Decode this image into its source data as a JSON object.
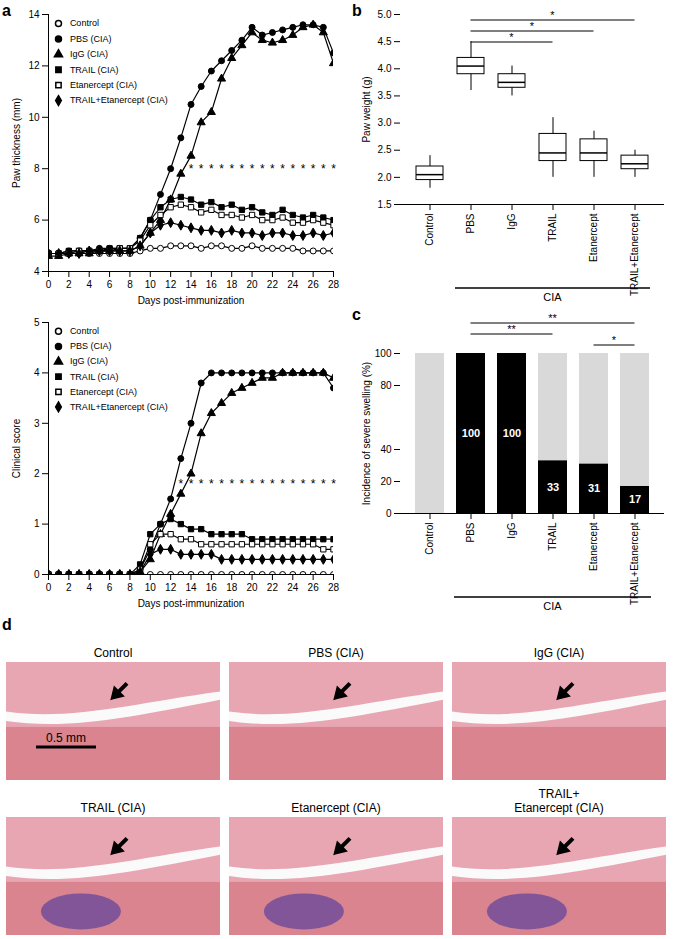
{
  "chart_data": [
    {
      "type": "line",
      "panel": "a",
      "x_label": "Days post-immunization",
      "y_label": "Paw thickness (mm)",
      "x": [
        0,
        1,
        2,
        3,
        4,
        5,
        6,
        7,
        8,
        9,
        10,
        11,
        12,
        13,
        14,
        15,
        16,
        17,
        18,
        19,
        20,
        21,
        22,
        23,
        24,
        25,
        26,
        27,
        28
      ],
      "xlim": [
        0,
        28
      ],
      "xticks": [
        0,
        2,
        4,
        6,
        8,
        10,
        12,
        14,
        16,
        18,
        20,
        22,
        24,
        26,
        28
      ],
      "ylim": [
        4,
        14
      ],
      "yticks": [
        4,
        6,
        8,
        10,
        12,
        14
      ],
      "legend": "top-left",
      "series": [
        {
          "name": "Control",
          "color": "#000000",
          "marker": "circle-open",
          "values": [
            4.7,
            4.7,
            4.7,
            4.7,
            4.7,
            4.7,
            4.7,
            4.7,
            4.7,
            4.8,
            4.9,
            4.9,
            5.0,
            5.0,
            5.0,
            4.9,
            5.0,
            5.0,
            4.9,
            4.9,
            5.0,
            4.9,
            4.9,
            4.9,
            4.9,
            4.8,
            4.8,
            4.8,
            4.8
          ]
        },
        {
          "name": "PBS (CIA)",
          "color": "#000000",
          "marker": "circle",
          "values": [
            4.7,
            4.7,
            4.8,
            4.8,
            4.8,
            4.9,
            4.9,
            4.9,
            4.9,
            5.3,
            6.0,
            7.0,
            8.0,
            9.2,
            10.5,
            11.2,
            11.8,
            12.2,
            12.6,
            13.0,
            13.5,
            13.2,
            13.3,
            13.4,
            13.5,
            13.6,
            13.6,
            13.5,
            12.5
          ]
        },
        {
          "name": "IgG (CIA)",
          "color": "#000000",
          "marker": "triangle",
          "values": [
            4.6,
            4.6,
            4.7,
            4.7,
            4.7,
            4.8,
            4.8,
            4.8,
            4.8,
            5.0,
            5.5,
            6.0,
            6.8,
            7.8,
            8.5,
            9.8,
            10.2,
            11.5,
            12.3,
            12.8,
            13.3,
            13.0,
            12.9,
            13.0,
            13.2,
            13.5,
            13.6,
            13.3,
            12.1
          ]
        },
        {
          "name": "TRAIL (CIA)",
          "color": "#000000",
          "marker": "square",
          "values": [
            4.7,
            4.7,
            4.8,
            4.8,
            4.8,
            4.8,
            4.9,
            4.9,
            4.9,
            5.3,
            6.0,
            6.5,
            6.8,
            6.9,
            6.8,
            6.6,
            6.7,
            6.5,
            6.6,
            6.4,
            6.5,
            6.3,
            6.2,
            6.4,
            6.2,
            6.1,
            6.2,
            6.1,
            6.0
          ]
        },
        {
          "name": "Etanercept (CIA)",
          "color": "#000000",
          "marker": "square-open",
          "values": [
            4.7,
            4.7,
            4.7,
            4.8,
            4.8,
            4.8,
            4.8,
            4.9,
            4.9,
            5.2,
            5.8,
            6.2,
            6.5,
            6.6,
            6.5,
            6.3,
            6.4,
            6.2,
            6.2,
            6.1,
            6.2,
            6.0,
            6.0,
            6.1,
            5.9,
            5.9,
            6.0,
            5.9,
            5.8
          ]
        },
        {
          "name": "TRAIL+Etanercept (CIA)",
          "color": "#000000",
          "marker": "diamond",
          "values": [
            4.7,
            4.7,
            4.7,
            4.7,
            4.8,
            4.8,
            4.8,
            4.8,
            4.8,
            5.0,
            5.5,
            5.8,
            5.9,
            5.8,
            5.7,
            5.6,
            5.6,
            5.5,
            5.6,
            5.5,
            5.5,
            5.4,
            5.5,
            5.5,
            5.4,
            5.4,
            5.5,
            5.4,
            5.5
          ]
        }
      ],
      "annotations": [
        {
          "x": 14,
          "y": 8.0,
          "text": "*"
        },
        {
          "x": 15,
          "y": 8.0,
          "text": "*"
        },
        {
          "x": 16,
          "y": 8.0,
          "text": "*"
        },
        {
          "x": 17,
          "y": 8.0,
          "text": "*"
        },
        {
          "x": 18,
          "y": 8.0,
          "text": "*"
        },
        {
          "x": 19,
          "y": 8.0,
          "text": "*"
        },
        {
          "x": 20,
          "y": 8.0,
          "text": "*"
        },
        {
          "x": 21,
          "y": 8.0,
          "text": "*"
        },
        {
          "x": 22,
          "y": 8.0,
          "text": "*"
        },
        {
          "x": 23,
          "y": 8.0,
          "text": "*"
        },
        {
          "x": 24,
          "y": 8.0,
          "text": "*"
        },
        {
          "x": 25,
          "y": 8.0,
          "text": "*"
        },
        {
          "x": 26,
          "y": 8.0,
          "text": "*"
        },
        {
          "x": 27,
          "y": 8.0,
          "text": "*"
        },
        {
          "x": 28,
          "y": 8.0,
          "text": "*"
        }
      ]
    },
    {
      "type": "line",
      "x_label": "Days post-immunization",
      "y_label": "Clinical score",
      "x": [
        0,
        1,
        2,
        3,
        4,
        5,
        6,
        7,
        8,
        9,
        10,
        11,
        12,
        13,
        14,
        15,
        16,
        17,
        18,
        19,
        20,
        21,
        22,
        23,
        24,
        25,
        26,
        27,
        28
      ],
      "xlim": [
        0,
        28
      ],
      "xticks": [
        0,
        2,
        4,
        6,
        8,
        10,
        12,
        14,
        16,
        18,
        20,
        22,
        24,
        26,
        28
      ],
      "ylim": [
        0,
        5
      ],
      "yticks": [
        0,
        1,
        2,
        3,
        4,
        5
      ],
      "legend": "top-left",
      "series": [
        {
          "name": "Control",
          "color": "#000000",
          "marker": "circle-open",
          "values": [
            0,
            0,
            0,
            0,
            0,
            0,
            0,
            0,
            0,
            0,
            0,
            0,
            0,
            0,
            0,
            0,
            0,
            0,
            0,
            0,
            0,
            0,
            0,
            0,
            0,
            0,
            0,
            0,
            0
          ]
        },
        {
          "name": "PBS (CIA)",
          "color": "#000000",
          "marker": "circle",
          "values": [
            0,
            0,
            0,
            0,
            0,
            0,
            0,
            0,
            0,
            0.1,
            0.5,
            1.0,
            1.5,
            2.3,
            3.0,
            3.8,
            4,
            4,
            4,
            4,
            4,
            4,
            4,
            4,
            4,
            4,
            4,
            4,
            3.7
          ]
        },
        {
          "name": "IgG (CIA)",
          "color": "#000000",
          "marker": "triangle",
          "values": [
            0,
            0,
            0,
            0,
            0,
            0,
            0,
            0,
            0,
            0.05,
            0.3,
            0.8,
            1.2,
            1.6,
            2.0,
            2.8,
            3.2,
            3.4,
            3.6,
            3.7,
            3.8,
            3.9,
            3.9,
            4,
            4,
            4,
            4,
            4,
            3.9
          ]
        },
        {
          "name": "TRAIL (CIA)",
          "color": "#000000",
          "marker": "square",
          "values": [
            0,
            0,
            0,
            0,
            0,
            0,
            0,
            0,
            0,
            0.2,
            0.8,
            1.0,
            1.1,
            1.0,
            0.9,
            0.9,
            0.8,
            0.8,
            0.8,
            0.8,
            0.7,
            0.7,
            0.7,
            0.7,
            0.7,
            0.7,
            0.7,
            0.7,
            0.7
          ]
        },
        {
          "name": "Etanercept (CIA)",
          "color": "#000000",
          "marker": "square-open",
          "values": [
            0,
            0,
            0,
            0,
            0,
            0,
            0,
            0,
            0,
            0.1,
            0.6,
            0.8,
            0.8,
            0.7,
            0.7,
            0.6,
            0.6,
            0.6,
            0.6,
            0.6,
            0.6,
            0.6,
            0.6,
            0.6,
            0.6,
            0.6,
            0.6,
            0.5,
            0.5
          ]
        },
        {
          "name": "TRAIL+Etanercept (CIA)",
          "color": "#000000",
          "marker": "diamond",
          "values": [
            0,
            0,
            0,
            0,
            0,
            0,
            0,
            0,
            0,
            0.05,
            0.4,
            0.5,
            0.5,
            0.4,
            0.4,
            0.4,
            0.4,
            0.3,
            0.3,
            0.3,
            0.3,
            0.3,
            0.3,
            0.3,
            0.3,
            0.3,
            0.3,
            0.3,
            0.3
          ]
        }
      ],
      "annotations": [
        {
          "x": 13,
          "y": 1.8,
          "text": "*"
        },
        {
          "x": 14,
          "y": 1.8,
          "text": "*"
        },
        {
          "x": 15,
          "y": 1.8,
          "text": "*"
        },
        {
          "x": 16,
          "y": 1.8,
          "text": "*"
        },
        {
          "x": 17,
          "y": 1.8,
          "text": "*"
        },
        {
          "x": 18,
          "y": 1.8,
          "text": "*"
        },
        {
          "x": 19,
          "y": 1.8,
          "text": "*"
        },
        {
          "x": 20,
          "y": 1.8,
          "text": "*"
        },
        {
          "x": 21,
          "y": 1.8,
          "text": "*"
        },
        {
          "x": 22,
          "y": 1.8,
          "text": "*"
        },
        {
          "x": 23,
          "y": 1.8,
          "text": "*"
        },
        {
          "x": 24,
          "y": 1.8,
          "text": "*"
        },
        {
          "x": 25,
          "y": 1.8,
          "text": "*"
        },
        {
          "x": 26,
          "y": 1.8,
          "text": "*"
        },
        {
          "x": 27,
          "y": 1.8,
          "text": "*"
        },
        {
          "x": 28,
          "y": 1.8,
          "text": "*"
        }
      ]
    },
    {
      "type": "box",
      "panel": "b",
      "y_label": "Paw weight (g)",
      "categories": [
        "Control",
        "PBS",
        "IgG",
        "TRAIL",
        "Etanercept",
        "TRAIL+Etanercept"
      ],
      "boxes": [
        {
          "min": 1.8,
          "q1": 1.95,
          "median": 2.05,
          "q3": 2.2,
          "max": 2.4
        },
        {
          "min": 3.6,
          "q1": 3.9,
          "median": 4.05,
          "q3": 4.2,
          "max": 4.5
        },
        {
          "min": 3.5,
          "q1": 3.65,
          "median": 3.75,
          "q3": 3.9,
          "max": 4.05
        },
        {
          "min": 2.0,
          "q1": 2.3,
          "median": 2.45,
          "q3": 2.8,
          "max": 3.1
        },
        {
          "min": 2.0,
          "q1": 2.3,
          "median": 2.45,
          "q3": 2.7,
          "max": 2.85
        },
        {
          "min": 2.0,
          "q1": 2.15,
          "median": 2.25,
          "q3": 2.4,
          "max": 2.5
        }
      ],
      "color": "#000000",
      "ylim": [
        1.5,
        5.0
      ],
      "yticks": [
        1.5,
        {
          "value": 2,
          "label": "2.0"
        },
        2.5,
        {
          "value": 3,
          "label": "3.0"
        },
        3.5,
        {
          "value": 4,
          "label": "4.0"
        },
        4.5,
        {
          "value": 5,
          "label": "5.0"
        }
      ],
      "group": {
        "label": "CIA",
        "categories": [
          "PBS",
          "IgG",
          "TRAIL",
          "Etanercept",
          "TRAIL+Etanercept"
        ]
      },
      "comparisons": [
        {
          "from": "PBS",
          "to": "TRAIL+Etanercept",
          "text": "*"
        },
        {
          "from": "PBS",
          "to": "Etanercept",
          "text": "*"
        },
        {
          "from": "PBS",
          "to": "TRAIL",
          "text": "*"
        }
      ]
    },
    {
      "type": "bar",
      "panel": "c",
      "y_label": "Incidence of severe swelling (%)",
      "stacked": true,
      "categories": [
        "Control",
        "PBS",
        "IgG",
        "TRAIL",
        "Etanercept",
        "TRAIL+Etanercept"
      ],
      "series": [
        {
          "color": "#000000",
          "values": [
            0,
            100,
            100,
            33,
            31,
            17
          ],
          "value_labels": [
            null,
            "100",
            "100",
            "33",
            "31",
            "17"
          ]
        },
        {
          "color": "#d9d9d9",
          "values": [
            100,
            0,
            0,
            67,
            69,
            83
          ]
        }
      ],
      "data_labels": true,
      "ylim": [
        0,
        100
      ],
      "yticks": [
        0,
        20,
        40,
        80,
        100
      ],
      "group": {
        "label": "CIA",
        "categories": [
          "PBS",
          "IgG",
          "TRAIL",
          "Etanercept",
          "TRAIL+Etanercept"
        ]
      },
      "comparisons": [
        {
          "from": "Etanercept",
          "to": "TRAIL+Etanercept",
          "text": "*"
        },
        {
          "from": "PBS",
          "to": "TRAIL",
          "text": "**"
        },
        {
          "from": "PBS",
          "to": "TRAIL+Etanercept",
          "text": "**"
        }
      ]
    }
  ],
  "histology": {
    "panel": "d",
    "scale_bar": "0.5 mm",
    "panels": [
      "Control",
      "PBS (CIA)",
      "IgG (CIA)",
      "TRAIL (CIA)",
      "Etanercept (CIA)",
      "TRAIL+\nEtanercept (CIA)"
    ]
  }
}
